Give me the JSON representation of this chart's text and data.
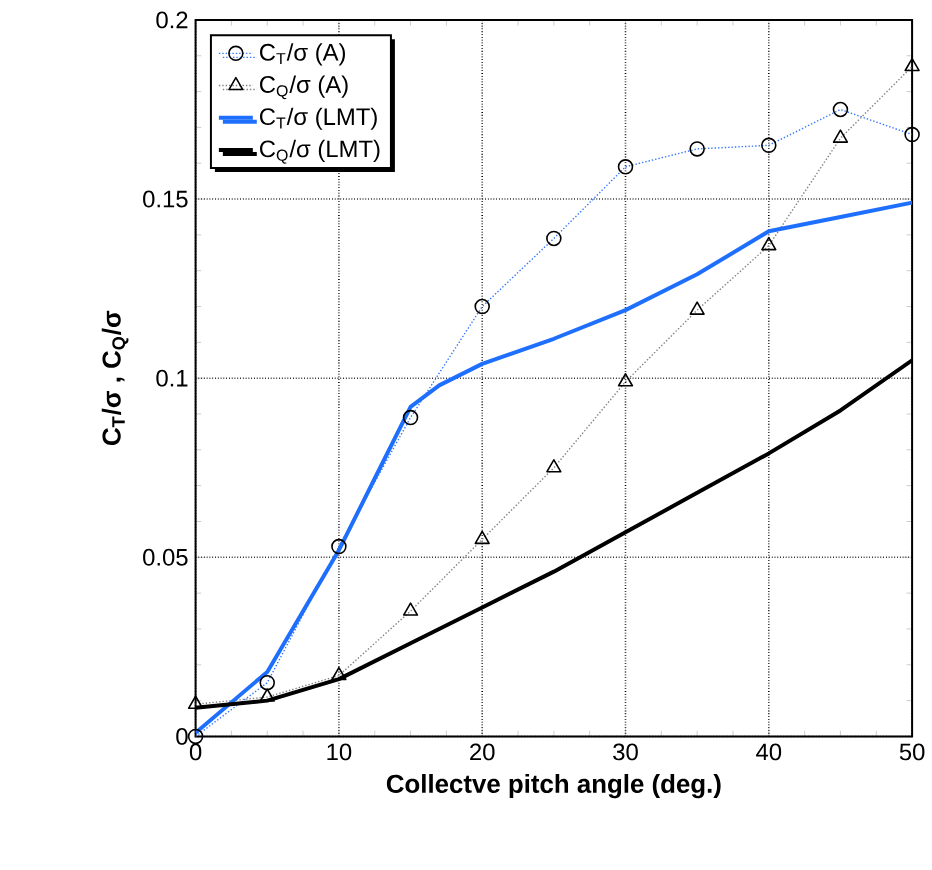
{
  "chart_data": {
    "type": "line",
    "xlabel": "Collectve pitch angle (deg.)",
    "ylabel": "C$_{T}$/σ , C$_{Q}$/σ",
    "xlim": [
      0,
      50
    ],
    "ylim": [
      0,
      0.2
    ],
    "xticks": [
      0,
      10,
      20,
      30,
      40,
      50
    ],
    "yticks": [
      0,
      0.05,
      0.1,
      0.15,
      0.2
    ],
    "grid": true,
    "legend": "top left",
    "series": [
      {
        "name": "C$_{T}$/σ (A)",
        "color": "#3377ff",
        "marker": "circle",
        "line_style": "dotted",
        "x": [
          0,
          5,
          10,
          15,
          20,
          25,
          30,
          35,
          40,
          45,
          50
        ],
        "values": [
          0,
          0.015,
          0.053,
          0.089,
          0.12,
          0.139,
          0.159,
          0.164,
          0.165,
          0.175,
          0.168
        ]
      },
      {
        "name": "C$_{Q}$/σ (A)",
        "color": "#808080",
        "marker": "triangle",
        "line_style": "dotted",
        "x": [
          0,
          5,
          10,
          15,
          20,
          25,
          30,
          35,
          40,
          45,
          50
        ],
        "values": [
          0.009,
          0.011,
          0.017,
          0.035,
          0.055,
          0.075,
          0.099,
          0.119,
          0.137,
          0.167,
          0.187
        ]
      },
      {
        "name": "C$_{T}$/σ (LMT)",
        "color": "#1f6fff",
        "marker": "none",
        "line_style": "solid",
        "x": [
          0,
          5,
          10,
          12.5,
          15,
          17,
          20,
          25,
          30,
          35,
          40,
          45,
          50
        ],
        "values": [
          0.001,
          0.018,
          0.052,
          0.072,
          0.092,
          0.098,
          0.104,
          0.111,
          0.119,
          0.129,
          0.141,
          0.145,
          0.149
        ]
      },
      {
        "name": "C$_{Q}$/σ (LMT)",
        "color": "#000000",
        "marker": "none",
        "line_style": "solid",
        "x": [
          0,
          5,
          10,
          15,
          20,
          25,
          30,
          35,
          40,
          45,
          50
        ],
        "values": [
          0.008,
          0.01,
          0.016,
          0.026,
          0.036,
          0.046,
          0.057,
          0.068,
          0.079,
          0.091,
          0.105
        ]
      }
    ]
  }
}
